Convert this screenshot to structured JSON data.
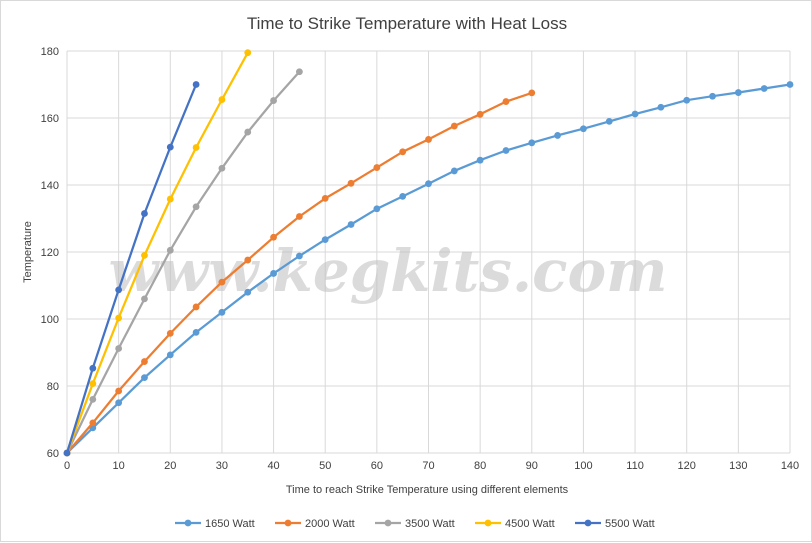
{
  "chart_data": {
    "type": "line",
    "title": "Time to Strike Temperature with Heat Loss",
    "xlabel": "Time to reach Strike Temperature  using different elements",
    "ylabel": "Temperature",
    "xlim": [
      0,
      140
    ],
    "ylim": [
      60,
      180
    ],
    "x_ticks": [
      0,
      10,
      20,
      30,
      40,
      50,
      60,
      70,
      80,
      90,
      100,
      110,
      120,
      130,
      140
    ],
    "y_ticks": [
      60,
      80,
      100,
      120,
      140,
      160,
      180
    ],
    "grid": true,
    "legend_position": "bottom",
    "series": [
      {
        "name": "1650 Watt",
        "color": "#5b9bd5",
        "x": [
          0,
          5,
          10,
          15,
          20,
          25,
          30,
          35,
          40,
          45,
          50,
          55,
          60,
          65,
          70,
          75,
          80,
          85,
          90,
          95,
          100,
          105,
          110,
          115,
          120,
          125,
          130,
          135,
          140
        ],
        "y": [
          60,
          67.5,
          75,
          82.5,
          89.3,
          96,
          102,
          108,
          113.6,
          118.8,
          123.7,
          128.2,
          132.9,
          136.6,
          140.4,
          144.2,
          147.4,
          150.3,
          152.6,
          154.8,
          156.8,
          159,
          161.2,
          163.2,
          165.3,
          166.5,
          167.6,
          168.8,
          170
        ]
      },
      {
        "name": "2000 Watt",
        "color": "#ed7d31",
        "x": [
          0,
          5,
          10,
          15,
          20,
          25,
          30,
          35,
          40,
          45,
          50,
          55,
          60,
          65,
          70,
          75,
          80,
          85,
          90
        ],
        "y": [
          60,
          69,
          78.5,
          87.3,
          95.7,
          103.6,
          111,
          117.6,
          124.4,
          130.6,
          136,
          140.5,
          145.2,
          149.9,
          153.6,
          157.6,
          161.1,
          164.9,
          167.5
        ]
      },
      {
        "name": "3500 Watt",
        "color": "#a5a5a5",
        "x": [
          0,
          5,
          10,
          15,
          20,
          25,
          30,
          35,
          40,
          45
        ],
        "y": [
          60,
          76,
          91.2,
          106,
          120.5,
          133.5,
          145,
          155.8,
          165.2,
          173.8
        ]
      },
      {
        "name": "4500 Watt",
        "color": "#ffc000",
        "x": [
          0,
          5,
          10,
          15,
          20,
          25,
          30,
          35
        ],
        "y": [
          60,
          80.7,
          100.3,
          119,
          135.8,
          151.2,
          165.5,
          179.5
        ]
      },
      {
        "name": "5500 Watt",
        "color": "#4472c4",
        "x": [
          0,
          5,
          10,
          15,
          20,
          25
        ],
        "y": [
          60,
          85.3,
          108.7,
          131.5,
          151.3,
          170
        ]
      }
    ],
    "annotations": [
      "www.kegkits.com"
    ]
  },
  "colors": {
    "gridline": "#d9d9d9",
    "text": "#404040"
  }
}
